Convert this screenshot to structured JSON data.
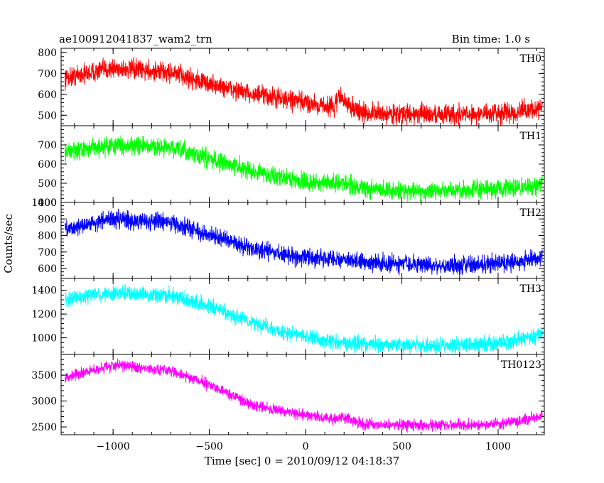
{
  "header": {
    "title": "ae100912041837_wam2_trn",
    "bin_time": "Bin time: 1.0 s"
  },
  "chart_data": {
    "type": "line",
    "x_range": [
      -1270,
      1240
    ],
    "xlabel": "Time [sec] 0 = 2010/09/12 04:18:37",
    "ylabel": "Counts/sec",
    "x_ticks": [
      {
        "v": -1000,
        "label": "−1000"
      },
      {
        "v": -500,
        "label": "−500"
      },
      {
        "v": 0,
        "label": "0"
      },
      {
        "v": 500,
        "label": "500"
      },
      {
        "v": 1000,
        "label": "1000"
      }
    ],
    "series_visible_x": [
      -1250,
      1230
    ],
    "panels": [
      {
        "name": "TH0",
        "color": "#ff0000",
        "ylim": [
          450,
          820
        ],
        "yticks": [
          {
            "v": 500,
            "label": "500"
          },
          {
            "v": 600,
            "label": "600"
          },
          {
            "v": 700,
            "label": "700"
          },
          {
            "v": 800,
            "label": "800"
          }
        ],
        "top_label": "800",
        "noise": 40,
        "trend": [
          [
            -1250,
            680
          ],
          [
            -1000,
            725
          ],
          [
            -700,
            705
          ],
          [
            -500,
            650
          ],
          [
            -300,
            605
          ],
          [
            -100,
            575
          ],
          [
            100,
            545
          ],
          [
            150,
            540
          ],
          [
            180,
            600
          ],
          [
            200,
            560
          ],
          [
            300,
            510
          ],
          [
            500,
            505
          ],
          [
            700,
            505
          ],
          [
            900,
            505
          ],
          [
            1100,
            515
          ],
          [
            1230,
            535
          ]
        ]
      },
      {
        "name": "TH1",
        "color": "#00ff00",
        "ylim": [
          400,
          800
        ],
        "yticks": [
          {
            "v": 400,
            "label": "400"
          },
          {
            "v": 500,
            "label": "500"
          },
          {
            "v": 600,
            "label": "600"
          },
          {
            "v": 700,
            "label": "700"
          }
        ],
        "noise": 40,
        "trend": [
          [
            -1250,
            660
          ],
          [
            -1000,
            700
          ],
          [
            -700,
            685
          ],
          [
            -500,
            630
          ],
          [
            -300,
            570
          ],
          [
            -100,
            525
          ],
          [
            100,
            495
          ],
          [
            200,
            505
          ],
          [
            300,
            470
          ],
          [
            500,
            460
          ],
          [
            700,
            460
          ],
          [
            900,
            465
          ],
          [
            1100,
            475
          ],
          [
            1230,
            495
          ]
        ]
      },
      {
        "name": "TH2",
        "color": "#0000ff",
        "ylim": [
          540,
          1000
        ],
        "yticks": [
          {
            "v": 600,
            "label": "600"
          },
          {
            "v": 700,
            "label": "700"
          },
          {
            "v": 800,
            "label": "800"
          },
          {
            "v": 900,
            "label": "900"
          },
          {
            "v": 1000,
            "label": "1000"
          }
        ],
        "top_label": "1000",
        "noise": 45,
        "trend": [
          [
            -1250,
            840
          ],
          [
            -1000,
            900
          ],
          [
            -700,
            880
          ],
          [
            -500,
            800
          ],
          [
            -300,
            730
          ],
          [
            -100,
            680
          ],
          [
            100,
            660
          ],
          [
            200,
            655
          ],
          [
            300,
            640
          ],
          [
            500,
            625
          ],
          [
            700,
            620
          ],
          [
            900,
            625
          ],
          [
            1100,
            640
          ],
          [
            1230,
            670
          ]
        ]
      },
      {
        "name": "TH3",
        "color": "#00ffff",
        "ylim": [
          860,
          1500
        ],
        "yticks": [
          {
            "v": 1000,
            "label": "1000"
          },
          {
            "v": 1200,
            "label": "1200"
          },
          {
            "v": 1400,
            "label": "1400"
          }
        ],
        "noise": 55,
        "trend": [
          [
            -1250,
            1320
          ],
          [
            -1000,
            1380
          ],
          [
            -700,
            1360
          ],
          [
            -500,
            1260
          ],
          [
            -300,
            1140
          ],
          [
            -100,
            1040
          ],
          [
            100,
            980
          ],
          [
            200,
            955
          ],
          [
            300,
            950
          ],
          [
            500,
            940
          ],
          [
            700,
            935
          ],
          [
            900,
            945
          ],
          [
            1100,
            985
          ],
          [
            1230,
            1030
          ]
        ]
      },
      {
        "name": "TH0123",
        "color": "#ff00ff",
        "ylim": [
          2350,
          3900
        ],
        "yticks": [
          {
            "v": 2500,
            "label": "2500"
          },
          {
            "v": 3000,
            "label": "3000"
          },
          {
            "v": 3500,
            "label": "3500"
          }
        ],
        "noise": 90,
        "trend": [
          [
            -1250,
            3450
          ],
          [
            -1000,
            3700
          ],
          [
            -700,
            3580
          ],
          [
            -500,
            3320
          ],
          [
            -300,
            2960
          ],
          [
            -100,
            2780
          ],
          [
            100,
            2680
          ],
          [
            160,
            2640
          ],
          [
            180,
            2700
          ],
          [
            220,
            2650
          ],
          [
            300,
            2560
          ],
          [
            500,
            2530
          ],
          [
            700,
            2530
          ],
          [
            900,
            2540
          ],
          [
            1100,
            2600
          ],
          [
            1230,
            2730
          ]
        ]
      }
    ]
  }
}
